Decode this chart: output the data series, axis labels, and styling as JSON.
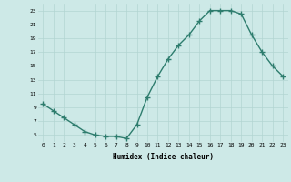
{
  "x": [
    0,
    1,
    2,
    3,
    4,
    5,
    6,
    7,
    8,
    9,
    10,
    11,
    12,
    13,
    14,
    15,
    16,
    17,
    18,
    19,
    20,
    21,
    22,
    23
  ],
  "y": [
    9.5,
    8.5,
    7.5,
    6.5,
    5.5,
    5.0,
    4.8,
    4.8,
    4.5,
    6.5,
    10.5,
    13.5,
    16.0,
    18.0,
    19.5,
    21.5,
    23.0,
    23.0,
    23.0,
    22.5,
    19.5,
    17.0,
    15.0,
    13.5
  ],
  "line_color": "#2e7d6e",
  "marker": "+",
  "marker_size": 4,
  "marker_lw": 1.0,
  "bg_color": "#cde9e7",
  "grid_color": "#b2d5d2",
  "xlabel": "Humidex (Indice chaleur)",
  "xlim": [
    -0.5,
    23.5
  ],
  "ylim": [
    4,
    24
  ],
  "yticks": [
    5,
    7,
    9,
    11,
    13,
    15,
    17,
    19,
    21,
    23
  ],
  "xticks": [
    0,
    1,
    2,
    3,
    4,
    5,
    6,
    7,
    8,
    9,
    10,
    11,
    12,
    13,
    14,
    15,
    16,
    17,
    18,
    19,
    20,
    21,
    22,
    23
  ],
  "xtick_labels": [
    "0",
    "1",
    "2",
    "3",
    "4",
    "5",
    "6",
    "7",
    "8",
    "9",
    "10",
    "11",
    "12",
    "13",
    "14",
    "15",
    "16",
    "17",
    "18",
    "19",
    "20",
    "21",
    "22",
    "23"
  ]
}
